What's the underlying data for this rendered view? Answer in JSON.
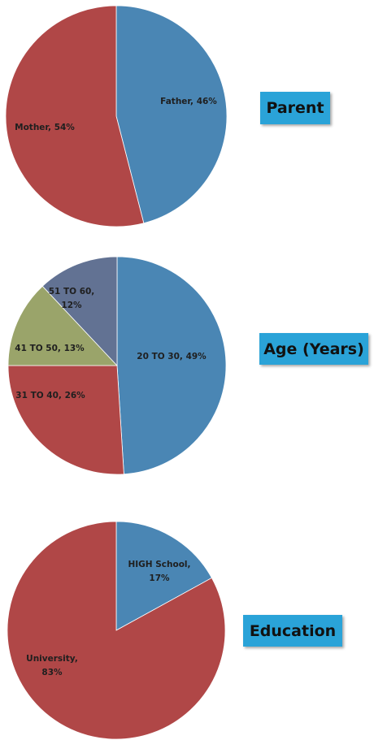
{
  "chart_data": [
    {
      "type": "pie",
      "title": "Parent",
      "slices": [
        {
          "label": "Father, 46%",
          "value": 46,
          "color": "#4a86b4"
        },
        {
          "label": "Mother, 54%",
          "value": 54,
          "color": "#b04747"
        }
      ]
    },
    {
      "type": "pie",
      "title": "Age (Years)",
      "slices": [
        {
          "label": "20 TO 30, 49%",
          "value": 49,
          "color": "#4a86b4"
        },
        {
          "label": "31 TO 40, 26%",
          "value": 26,
          "color": "#b04747"
        },
        {
          "label": "41 TO 50, 13%",
          "value": 13,
          "color": "#9aa46a"
        },
        {
          "label": "51 TO 60, 12%",
          "value": 12,
          "color": "#627293"
        }
      ]
    },
    {
      "type": "pie",
      "title": "Education",
      "slices": [
        {
          "label": "HIGH School, 17%",
          "value": 17,
          "color": "#4a86b4"
        },
        {
          "label": "University, 83%",
          "value": 83,
          "color": "#b04747"
        }
      ]
    }
  ]
}
